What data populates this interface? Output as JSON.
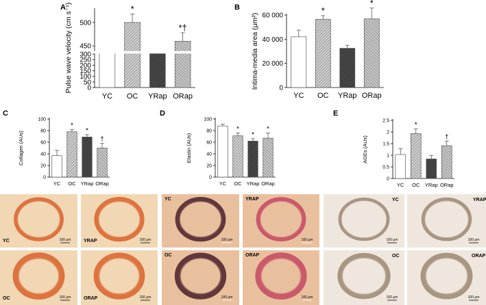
{
  "chart_data": [
    {
      "panel": "A",
      "type": "bar",
      "broken_axis": true,
      "categories": [
        "YC",
        "OC",
        "YRap",
        "ORap"
      ],
      "values": [
        310,
        500,
        320,
        460
      ],
      "errors": [
        28,
        18,
        18,
        18
      ],
      "ylabel": "Pulse wave velocity (cm s⁻¹)",
      "yticks": [
        "0",
        "50",
        "100",
        "150",
        "200",
        "250",
        "300",
        "450",
        "500"
      ],
      "annotations": [
        "",
        "*",
        "",
        "*†"
      ]
    },
    {
      "panel": "B",
      "type": "bar",
      "categories": [
        "YC",
        "OC",
        "YRap",
        "ORap"
      ],
      "values": [
        42000,
        56500,
        32500,
        56800
      ],
      "errors": [
        5500,
        3000,
        2500,
        9000
      ],
      "ylabel": "Intima-media area (μm²)",
      "ylim": [
        0,
        60000
      ],
      "yticks": [
        "0",
        "20 000",
        "40 000",
        "60 000"
      ],
      "annotations": [
        "",
        "*",
        "",
        "*"
      ]
    },
    {
      "panel": "C",
      "type": "bar",
      "categories": [
        "YC",
        "OC",
        "YRap",
        "ORap"
      ],
      "values": [
        37,
        78,
        69,
        50
      ],
      "errors": [
        9,
        4,
        4,
        8
      ],
      "ylabel": "Collagen (AUs)",
      "ylim": [
        0,
        100
      ],
      "yticks": [
        "0",
        "20",
        "40",
        "60",
        "80",
        "100"
      ],
      "annotations": [
        "",
        "*",
        "*",
        "†"
      ]
    },
    {
      "panel": "D",
      "type": "bar",
      "categories": [
        "YC",
        "OC",
        "YRap",
        "ORap"
      ],
      "values": [
        88,
        71,
        62,
        67
      ],
      "errors": [
        3,
        5,
        4,
        9
      ],
      "ylabel": "Elastin (AUs)",
      "ylim": [
        0,
        100
      ],
      "yticks": [
        "0",
        "20",
        "40",
        "60",
        "80",
        "100"
      ],
      "annotations": [
        "",
        "*",
        "*",
        "*"
      ]
    },
    {
      "panel": "E",
      "type": "bar",
      "categories": [
        "YC",
        "OC",
        "YRap",
        "ORap"
      ],
      "values": [
        1.03,
        1.93,
        0.84,
        1.41
      ],
      "errors": [
        0.25,
        0.2,
        0.15,
        0.2
      ],
      "ylabel": "AGEs (AUs)",
      "ylim": [
        0,
        2.5
      ],
      "yticks": [
        "0",
        "0.5",
        "1",
        "1.5",
        "2",
        "2.5"
      ],
      "annotations": [
        "",
        "*",
        "",
        "†"
      ]
    }
  ],
  "histology": {
    "collagen_labels": [
      "YC",
      "YRAP",
      "OC",
      "ORAP"
    ],
    "elastin_labels": [
      "YC",
      "YRAP",
      "OC",
      "ORAP"
    ],
    "ages_labels": [
      "YC",
      "YRAP",
      "OC",
      "ORAP"
    ],
    "scale_text": "100 μm",
    "colors": {
      "collagen_bg": "#f1d7b4",
      "collagen_ring": "#d9612a",
      "elastin_bg": "#e9c09e",
      "elastin_ring_young": "#c44762",
      "elastin_ring_old": "#4a1f2a",
      "ages_bg": "#efe7dd",
      "ages_ring": "#9b8672"
    }
  },
  "colors": {
    "YC": "#ffffff",
    "OC": "#b8b8b8",
    "YRap": "#444444",
    "ORap": "#a4a4a4"
  }
}
